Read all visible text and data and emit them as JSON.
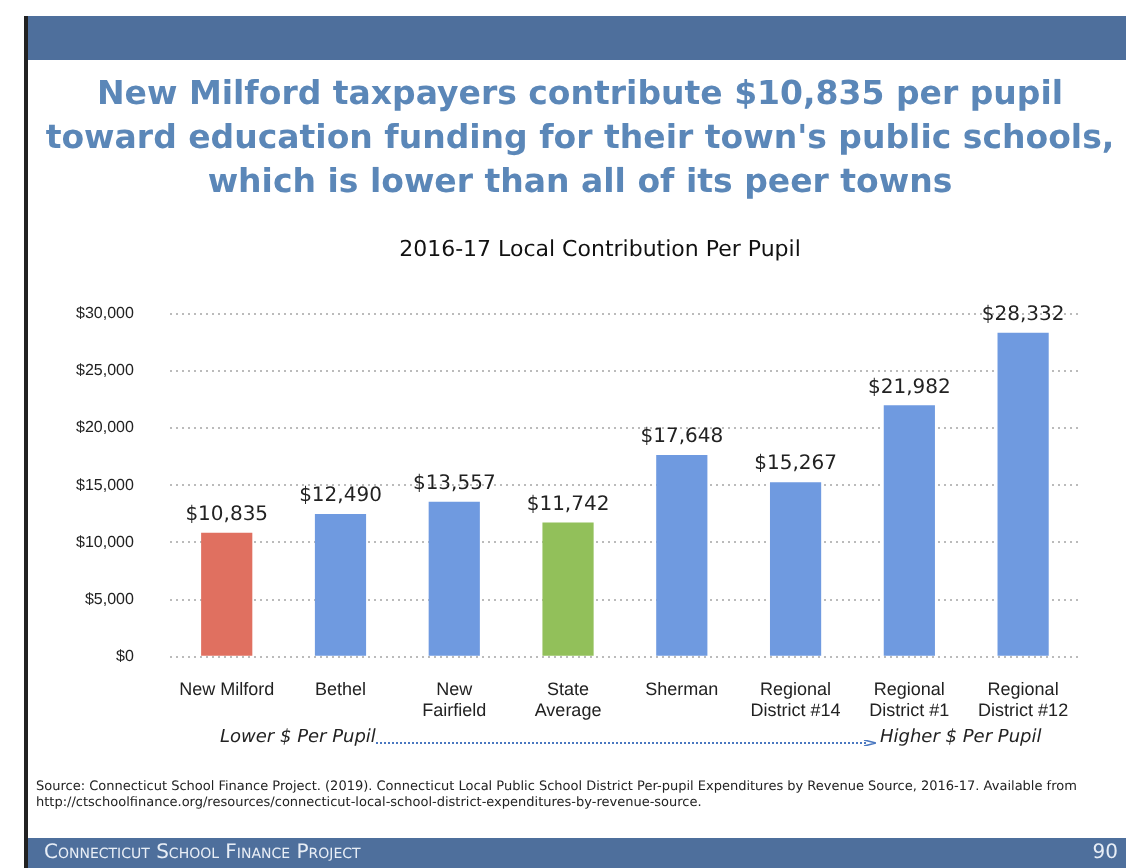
{
  "chart_data": {
    "type": "bar",
    "title": "New Milford taxpayers contribute $10,835 per pupil toward education funding for their town's public schools, which is lower than all of its peer towns",
    "subtitle": "2016-17 Local Contribution Per Pupil",
    "categories": [
      "New Milford",
      "Bethel",
      "New Fairfield",
      "State Average",
      "Sherman",
      "Regional District #14",
      "Regional District #1",
      "Regional District #12"
    ],
    "values": [
      10835,
      12490,
      13557,
      11742,
      17648,
      15267,
      21982,
      28332
    ],
    "colors": [
      "#e07060",
      "#6f9ae0",
      "#6f9ae0",
      "#92c05a",
      "#6f9ae0",
      "#6f9ae0",
      "#6f9ae0",
      "#6f9ae0"
    ],
    "value_labels": [
      "$10,835",
      "$12,490",
      "$13,557",
      "$11,742",
      "$17,648",
      "$15,267",
      "$21,982",
      "$28,332"
    ],
    "ylim": [
      0,
      30000
    ],
    "yticks": [
      {
        "value": 0,
        "label": "$0"
      },
      {
        "value": 5000,
        "label": "$5,000"
      },
      {
        "value": 10000,
        "label": "$10,000"
      },
      {
        "value": 15000,
        "label": "$15,000"
      },
      {
        "value": 20000,
        "label": "$20,000"
      },
      {
        "value": 25000,
        "label": "$25,000"
      },
      {
        "value": 30000,
        "label": "$30,000"
      }
    ],
    "grid": "y",
    "legend": false,
    "annotations": [
      "Lower $ Per Pupil",
      "Higher $ Per Pupil",
      "Source: Connecticut School Finance Project. (2019). Connecticut Local Public School District Per-pupil Expenditures by Revenue Source, 2016-17. Available from http://ctschoolfinance.org/resources/connecticut-local-school-district-expenditures-by-revenue-source.",
      "Connecticut School Finance Project",
      "90"
    ]
  }
}
